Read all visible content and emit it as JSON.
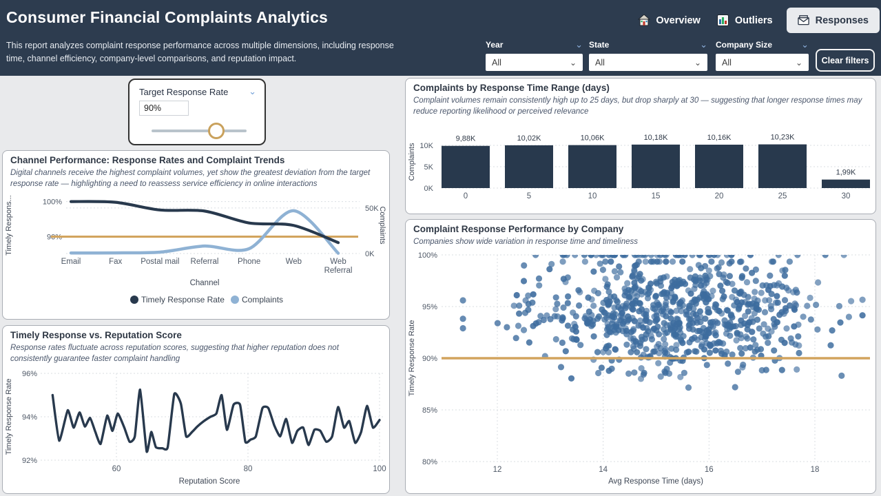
{
  "header": {
    "title": "Consumer Financial Complaints Analytics",
    "subtitle": "This report analyzes complaint response performance across multiple dimensions, including response time, channel efficiency, company-level comparisons, and reputation impact.",
    "tabs": [
      {
        "label": "Overview",
        "icon": "home-icon",
        "selected": false
      },
      {
        "label": "Outliers",
        "icon": "bar-chart-icon",
        "selected": false
      },
      {
        "label": "Responses",
        "icon": "envelope-icon",
        "selected": true
      }
    ],
    "filters": [
      {
        "label": "Year",
        "value": "All"
      },
      {
        "label": "State",
        "value": "All"
      },
      {
        "label": "Company Size",
        "value": "All"
      }
    ],
    "clear_filters_label": "Clear filters"
  },
  "target_card": {
    "label": "Target Response Rate",
    "value": "90%",
    "slider_percent": 68
  },
  "colors": {
    "header_bg": "#2d3c4f",
    "navy": "#28394d",
    "light_blue": "#8fb2d4",
    "gold": "#d2a45e",
    "scatter_blue": "#3d6c9e",
    "grid": "#d9dde2",
    "tick_text": "#4e5866",
    "axis_title": "#3d4654"
  },
  "chart_data": [
    {
      "id": "channel",
      "type": "line",
      "title": "Channel Performance: Response Rates and Complaint Trends",
      "subtitle": "Digital channels receive the highest complaint volumes, yet show the greatest deviation from the target response rate — highlighting a need to reassess service efficiency in online interactions",
      "categories": [
        "Email",
        "Fax",
        "Postal mail",
        "Referral",
        "Phone",
        "Web",
        "Web Referral"
      ],
      "xlabel": "Channel",
      "series": [
        {
          "name": "Timely Response Rate",
          "axis": "left",
          "color": "#28394d",
          "values": [
            100,
            99.8,
            97.6,
            97.3,
            93.9,
            93.2,
            88.3
          ]
        },
        {
          "name": "Complaints",
          "axis": "right",
          "color": "#8fb2d4",
          "values": [
            600,
            700,
            1500,
            8200,
            5300,
            47000,
            300
          ]
        }
      ],
      "target_line": {
        "value": 90,
        "color": "#d2a45e"
      },
      "left_axis": {
        "title": "Timely Respons...",
        "min": 85.2,
        "max": 101.3,
        "ticks": [
          {
            "value": 100,
            "label": "100%"
          },
          {
            "value": 90,
            "label": "90%"
          }
        ]
      },
      "right_axis": {
        "title": "Complaints",
        "min": 0,
        "max": 62000,
        "ticks": [
          {
            "value": 50000,
            "label": "50K"
          },
          {
            "value": 0,
            "label": "0K"
          }
        ]
      }
    },
    {
      "id": "response-time-bars",
      "type": "bar",
      "title": "Complaints by Response Time Range (days)",
      "subtitle": "Complaint volumes remain consistently high up to 25 days, but drop sharply at 30 — suggesting that longer response times may reduce reporting likelihood or perceived relevance",
      "categories": [
        "0",
        "5",
        "10",
        "15",
        "20",
        "25",
        "30"
      ],
      "values": [
        9880,
        10020,
        10060,
        10180,
        10160,
        10230,
        1990
      ],
      "labels": [
        "9,88K",
        "10,02K",
        "10,06K",
        "10,18K",
        "10,16K",
        "10,23K",
        "1,99K"
      ],
      "ylabel": "Complaints",
      "ylim": [
        0,
        10400
      ],
      "yticks": [
        {
          "value": 0,
          "label": "0K"
        },
        {
          "value": 5000,
          "label": "5K"
        },
        {
          "value": 10000,
          "label": "10K"
        }
      ],
      "color": "#28394d"
    },
    {
      "id": "reputation-line",
      "type": "line",
      "title": "Timely Response vs. Reputation Score",
      "subtitle": "Response rates fluctuate across reputation scores, suggesting that higher reputation does not consistently guarantee faster complaint handling",
      "xlabel": "Reputation Score",
      "ylabel": "Timely Response Rate",
      "color": "#28394d",
      "xlim": [
        49,
        100
      ],
      "ylim": [
        92,
        96
      ],
      "xticks": [
        {
          "value": 60,
          "label": "60"
        },
        {
          "value": 80,
          "label": "80"
        },
        {
          "value": 100,
          "label": "100"
        }
      ],
      "yticks": [
        {
          "value": 96,
          "label": "96%"
        },
        {
          "value": 94,
          "label": "94%"
        },
        {
          "value": 92,
          "label": "92%"
        }
      ],
      "x": [
        50.3,
        51.3,
        52.6,
        53.5,
        54.4,
        55.2,
        56.0,
        56.8,
        57.6,
        58.6,
        59.4,
        60.2,
        61.2,
        62.0,
        62.8,
        63.6,
        64.6,
        65.3,
        66.0,
        67.0,
        67.8,
        68.8,
        69.8,
        70.6,
        71.5,
        72.3,
        73.3,
        74.3,
        75.2,
        76.0,
        76.8,
        77.8,
        78.8,
        79.6,
        80.4,
        81.2,
        82.2,
        83.1,
        84.0,
        84.9,
        85.8,
        86.7,
        87.5,
        88.4,
        89.2,
        90.1,
        91.0,
        91.9,
        92.8,
        93.7,
        94.6,
        95.4,
        96.3,
        97.2,
        98.1,
        99.0,
        100.0
      ],
      "y": [
        95.0,
        92.9,
        94.3,
        93.5,
        94.2,
        93.55,
        93.95,
        93.3,
        92.75,
        94.05,
        93.35,
        94.15,
        93.5,
        92.85,
        93.1,
        95.25,
        92.4,
        93.3,
        92.6,
        92.55,
        92.6,
        95.05,
        94.6,
        93.1,
        93.3,
        93.55,
        93.8,
        94.0,
        94.15,
        95.0,
        93.4,
        94.55,
        94.55,
        92.85,
        92.95,
        93.1,
        94.4,
        94.4,
        93.6,
        93.1,
        93.9,
        92.8,
        93.35,
        93.5,
        92.7,
        93.4,
        93.35,
        92.85,
        93.1,
        94.45,
        93.5,
        93.8,
        92.8,
        93.3,
        94.5,
        93.5,
        93.85
      ]
    },
    {
      "id": "company-scatter",
      "type": "scatter",
      "title": "Complaint Response Performance by Company",
      "subtitle": "Companies show wide variation in response time and timeliness",
      "xlabel": "Avg Response Time (days)",
      "ylabel": "Timely Response Rate",
      "point_color": "#3d6c9e",
      "target_line": {
        "value": 90,
        "color": "#d2a45e"
      },
      "xlim": [
        11,
        19
      ],
      "ylim": [
        80,
        100
      ],
      "xticks": [
        {
          "value": 12,
          "label": "12"
        },
        {
          "value": 14,
          "label": "14"
        },
        {
          "value": 16,
          "label": "16"
        },
        {
          "value": 18,
          "label": "18"
        }
      ],
      "yticks": [
        {
          "value": 100,
          "label": "100%"
        },
        {
          "value": 95,
          "label": "95%"
        },
        {
          "value": 90,
          "label": "90%"
        },
        {
          "value": 85,
          "label": "85%"
        },
        {
          "value": 80,
          "label": "80%"
        }
      ],
      "generator": {
        "seed": 7,
        "count": 820,
        "x_mean": 15.35,
        "x_sd": 1.32,
        "x_min": 11.35,
        "x_max": 18.9,
        "y_mean": 94.3,
        "y_sd": 2.65,
        "y_cap": 99.35,
        "y_min": 81.2,
        "top_row_fraction": 0.06,
        "top_row_value": 100
      }
    }
  ]
}
